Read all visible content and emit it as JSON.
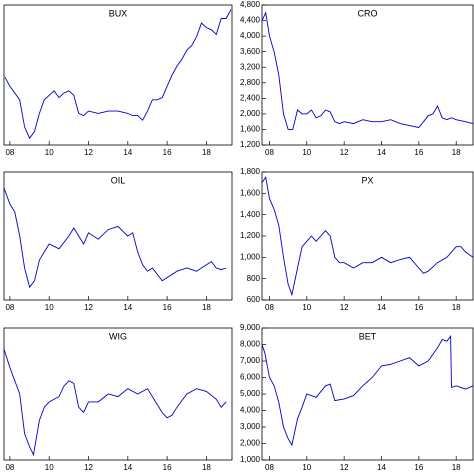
{
  "chart_data": [
    {
      "type": "line",
      "title": "BUX",
      "color": "#0000cc",
      "x": [
        2007.75,
        2008,
        2008.5,
        2008.75,
        2009,
        2009.25,
        2009.5,
        2009.75,
        2010,
        2010.25,
        2010.5,
        2010.75,
        2011,
        2011.25,
        2011.5,
        2011.75,
        2012,
        2012.5,
        2013,
        2013.5,
        2014,
        2014.25,
        2014.5,
        2014.75,
        2015,
        2015.25,
        2015.5,
        2015.75,
        2016,
        2016.25,
        2016.5,
        2016.75,
        2017,
        2017.25,
        2017.5,
        2017.75,
        2018,
        2018.25,
        2018.5,
        2018.75,
        2019,
        2019.25
      ],
      "values": [
        26000,
        24000,
        21000,
        15000,
        12500,
        14000,
        18000,
        21000,
        22000,
        23000,
        21500,
        22500,
        23000,
        22000,
        18000,
        17500,
        18500,
        18000,
        18500,
        18500,
        18000,
        17500,
        17500,
        16500,
        18500,
        21000,
        21000,
        21500,
        24000,
        26500,
        28500,
        30000,
        32000,
        33000,
        35000,
        38000,
        37000,
        36500,
        35500,
        39000,
        39000,
        41000
      ],
      "xlim": [
        2007.7,
        2019.3
      ],
      "ylim": [
        11000,
        42000
      ],
      "xticks": [
        {
          "value": 2008,
          "label": "08"
        },
        {
          "value": 2010,
          "label": "10"
        },
        {
          "value": 2012,
          "label": "12"
        },
        {
          "value": 2014,
          "label": "14"
        },
        {
          "value": 2016,
          "label": "16"
        },
        {
          "value": 2018,
          "label": "18"
        }
      ]
    },
    {
      "type": "line",
      "title": "CRO",
      "color": "#0000cc",
      "x": [
        2007.6,
        2007.8,
        2008,
        2008.25,
        2008.5,
        2008.75,
        2009,
        2009.25,
        2009.5,
        2009.75,
        2010,
        2010.25,
        2010.5,
        2010.75,
        2011,
        2011.25,
        2011.5,
        2011.75,
        2012,
        2012.5,
        2013,
        2013.5,
        2014,
        2014.5,
        2015,
        2015.5,
        2016,
        2016.25,
        2016.5,
        2016.75,
        2017,
        2017.25,
        2017.5,
        2017.75,
        2018,
        2018.5,
        2018.9
      ],
      "values": [
        4400,
        4600,
        4000,
        3600,
        3000,
        2000,
        1600,
        1600,
        2100,
        2000,
        2000,
        2100,
        1900,
        1950,
        2100,
        2050,
        1800,
        1750,
        1800,
        1750,
        1850,
        1800,
        1800,
        1850,
        1750,
        1700,
        1650,
        1800,
        1950,
        2000,
        2200,
        1900,
        1850,
        1900,
        1850,
        1800,
        1750
      ],
      "xlim": [
        2007.6,
        2018.9
      ],
      "ylim": [
        1200,
        4800
      ],
      "xticks": [
        {
          "value": 2008,
          "label": "08"
        },
        {
          "value": 2010,
          "label": "10"
        },
        {
          "value": 2012,
          "label": "12"
        },
        {
          "value": 2014,
          "label": "14"
        },
        {
          "value": 2016,
          "label": "16"
        },
        {
          "value": 2018,
          "label": "18"
        }
      ],
      "yticks": [
        {
          "value": 1200,
          "label": "1,200"
        },
        {
          "value": 1600,
          "label": "1,600"
        },
        {
          "value": 2000,
          "label": "2,000"
        },
        {
          "value": 2400,
          "label": "2,400"
        },
        {
          "value": 2800,
          "label": "2,800"
        },
        {
          "value": 3200,
          "label": "3,200"
        },
        {
          "value": 3600,
          "label": "3,600"
        },
        {
          "value": 4000,
          "label": "4,000"
        },
        {
          "value": 4400,
          "label": "4,400"
        },
        {
          "value": 4800,
          "label": "4,800"
        }
      ]
    },
    {
      "type": "line",
      "title": "OIL",
      "color": "#0000cc",
      "x": [
        2007.7,
        2008,
        2008.25,
        2008.5,
        2008.75,
        2009,
        2009.25,
        2009.5,
        2009.75,
        2010,
        2010.5,
        2011,
        2011.25,
        2011.5,
        2011.75,
        2012,
        2012.5,
        2013,
        2013.5,
        2014,
        2014.25,
        2014.5,
        2014.75,
        2015,
        2015.25,
        2015.5,
        2015.75,
        2016,
        2016.5,
        2017,
        2017.5,
        2018,
        2018.25,
        2018.5,
        2018.75,
        2019
      ],
      "values": [
        1000,
        900,
        850,
        700,
        500,
        380,
        420,
        550,
        600,
        650,
        620,
        700,
        750,
        700,
        650,
        720,
        680,
        740,
        760,
        700,
        720,
        600,
        520,
        480,
        500,
        460,
        420,
        440,
        480,
        500,
        480,
        520,
        540,
        500,
        490,
        500
      ],
      "xlim": [
        2007.7,
        2019.3
      ],
      "ylim": [
        300,
        1100
      ],
      "xticks": [
        {
          "value": 2008,
          "label": "08"
        },
        {
          "value": 2010,
          "label": "10"
        },
        {
          "value": 2012,
          "label": "12"
        },
        {
          "value": 2014,
          "label": "14"
        },
        {
          "value": 2016,
          "label": "16"
        },
        {
          "value": 2018,
          "label": "18"
        }
      ]
    },
    {
      "type": "line",
      "title": "PX",
      "color": "#0000cc",
      "x": [
        2007.6,
        2007.8,
        2008,
        2008.25,
        2008.5,
        2008.75,
        2009,
        2009.2,
        2009.5,
        2009.75,
        2010,
        2010.25,
        2010.5,
        2010.75,
        2011,
        2011.25,
        2011.5,
        2011.75,
        2012,
        2012.5,
        2013,
        2013.5,
        2014,
        2014.5,
        2015,
        2015.5,
        2016,
        2016.25,
        2016.5,
        2017,
        2017.5,
        2018,
        2018.25,
        2018.5,
        2018.9
      ],
      "values": [
        1700,
        1750,
        1550,
        1450,
        1300,
        1000,
        750,
        650,
        900,
        1100,
        1150,
        1200,
        1150,
        1200,
        1250,
        1200,
        1000,
        950,
        950,
        900,
        950,
        950,
        1000,
        950,
        980,
        1000,
        900,
        850,
        870,
        950,
        1000,
        1100,
        1100,
        1050,
        1000
      ],
      "xlim": [
        2007.6,
        2018.9
      ],
      "ylim": [
        600,
        1800
      ],
      "xticks": [
        {
          "value": 2008,
          "label": "08"
        },
        {
          "value": 2010,
          "label": "10"
        },
        {
          "value": 2012,
          "label": "12"
        },
        {
          "value": 2014,
          "label": "14"
        },
        {
          "value": 2016,
          "label": "16"
        },
        {
          "value": 2018,
          "label": "18"
        }
      ],
      "yticks": [
        600,
        800,
        {
          "value": 1000,
          "label": "1,000"
        },
        {
          "value": 1200,
          "label": "1,200"
        },
        {
          "value": 1400,
          "label": "1,400"
        },
        {
          "value": 1600,
          "label": "1,600"
        },
        {
          "value": 1800,
          "label": "1,800"
        }
      ]
    },
    {
      "type": "line",
      "title": "WIG",
      "color": "#0000cc",
      "x": [
        2007.7,
        2008,
        2008.25,
        2008.5,
        2008.75,
        2009,
        2009.2,
        2009.5,
        2009.75,
        2010,
        2010.5,
        2010.75,
        2011,
        2011.25,
        2011.5,
        2011.75,
        2012,
        2012.5,
        2013,
        2013.5,
        2014,
        2014.5,
        2015,
        2015.5,
        2015.75,
        2016,
        2016.25,
        2016.5,
        2017,
        2017.5,
        2018,
        2018.5,
        2018.75,
        2019
      ],
      "values": [
        62000,
        55000,
        50000,
        45000,
        30000,
        25000,
        22000,
        35000,
        40000,
        42000,
        44000,
        48000,
        50000,
        49000,
        40000,
        38000,
        42000,
        42000,
        45000,
        44000,
        47000,
        45000,
        47000,
        41000,
        38000,
        36000,
        37000,
        40000,
        45000,
        47000,
        46000,
        43000,
        40000,
        42000
      ],
      "xlim": [
        2007.7,
        2019.3
      ],
      "ylim": [
        20000,
        70000
      ],
      "xticks": [
        {
          "value": 2008,
          "label": "08"
        },
        {
          "value": 2010,
          "label": "10"
        },
        {
          "value": 2012,
          "label": "12"
        },
        {
          "value": 2014,
          "label": "14"
        },
        {
          "value": 2016,
          "label": "16"
        },
        {
          "value": 2018,
          "label": "18"
        }
      ]
    },
    {
      "type": "line",
      "title": "BET",
      "color": "#0000cc",
      "x": [
        2007.6,
        2007.75,
        2008,
        2008.25,
        2008.5,
        2008.75,
        2009,
        2009.2,
        2009.5,
        2009.75,
        2010,
        2010.5,
        2011,
        2011.25,
        2011.5,
        2012,
        2012.5,
        2013,
        2013.5,
        2014,
        2014.5,
        2015,
        2015.5,
        2016,
        2016.5,
        2017,
        2017.25,
        2017.5,
        2017.7,
        2017.75,
        2018,
        2018.5,
        2018.9
      ],
      "values": [
        8000,
        7500,
        6000,
        5500,
        4500,
        3000,
        2300,
        1900,
        3500,
        4200,
        5000,
        4800,
        5500,
        5600,
        4600,
        4700,
        4900,
        5500,
        6000,
        6700,
        6800,
        7000,
        7200,
        6700,
        7000,
        7800,
        8300,
        8200,
        8500,
        5400,
        5500,
        5300,
        5500
      ],
      "xlim": [
        2007.6,
        2018.9
      ],
      "ylim": [
        1000,
        9000
      ],
      "xticks": [
        {
          "value": 2008,
          "label": "08"
        },
        {
          "value": 2010,
          "label": "10"
        },
        {
          "value": 2012,
          "label": "12"
        },
        {
          "value": 2014,
          "label": "14"
        },
        {
          "value": 2016,
          "label": "16"
        },
        {
          "value": 2018,
          "label": "18"
        }
      ],
      "yticks": [
        {
          "value": 1000,
          "label": "1,000"
        },
        {
          "value": 2000,
          "label": "2,000"
        },
        {
          "value": 3000,
          "label": "3,000"
        },
        {
          "value": 4000,
          "label": "4,000"
        },
        {
          "value": 5000,
          "label": "5,000"
        },
        {
          "value": 6000,
          "label": "6,000"
        },
        {
          "value": 7000,
          "label": "7,000"
        },
        {
          "value": 8000,
          "label": "8,000"
        },
        {
          "value": 9000,
          "label": "9,000"
        }
      ]
    }
  ]
}
